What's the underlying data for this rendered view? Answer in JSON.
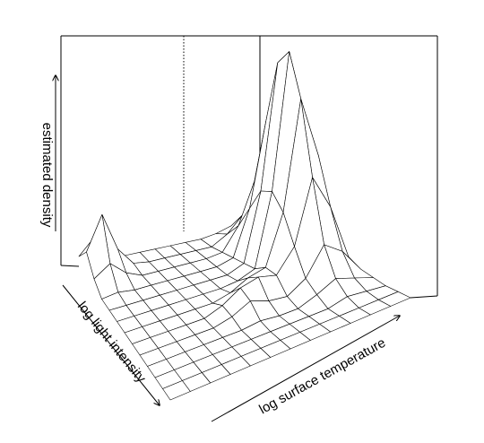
{
  "chart_data": {
    "type": "surface",
    "xlabel": "log surface temperature",
    "ylabel": "log light intensity",
    "zlabel": "estimated density",
    "zlim": [
      0,
      1
    ],
    "color": "#ffffff",
    "z": [
      [
        0.04,
        0.11,
        0.04,
        0,
        0,
        0,
        0,
        0,
        0,
        0.01,
        0.03,
        0.02,
        0
      ],
      [
        0.11,
        0.26,
        0.09,
        0.01,
        0,
        0,
        0,
        0,
        0,
        0.04,
        0.11,
        0.07,
        0.01
      ],
      [
        0.04,
        0.09,
        0.03,
        0,
        0,
        0,
        0,
        0,
        0.01,
        0.11,
        0.29,
        0.19,
        0.03
      ],
      [
        0,
        0.01,
        0,
        0,
        0,
        0,
        0,
        0,
        0.02,
        0.22,
        0.59,
        0.38,
        0.06
      ],
      [
        0,
        0,
        0,
        0,
        0,
        0,
        0,
        0,
        0.03,
        0.33,
        0.88,
        0.57,
        0.09
      ],
      [
        0,
        0,
        0,
        0,
        0,
        0,
        0,
        0.01,
        0.04,
        0.36,
        0.96,
        0.62,
        0.1
      ],
      [
        0,
        0,
        0,
        0,
        0,
        0,
        0.02,
        0.06,
        0.08,
        0.3,
        0.78,
        0.5,
        0.08
      ],
      [
        0,
        0,
        0,
        0,
        0,
        0.03,
        0.08,
        0.1,
        0.08,
        0.18,
        0.46,
        0.3,
        0.05
      ],
      [
        0,
        0,
        0,
        0,
        0,
        0.02,
        0.06,
        0.03,
        0.02,
        0.07,
        0.19,
        0.13,
        0.02
      ],
      [
        0,
        0,
        0,
        0,
        0,
        0,
        0.01,
        0,
        0,
        0.03,
        0.07,
        0.04,
        0.01
      ],
      [
        0,
        0,
        0,
        0,
        0,
        0,
        0,
        0,
        0,
        0,
        0.02,
        0.01,
        0
      ],
      [
        0,
        0,
        0,
        0,
        0,
        0,
        0,
        0,
        0,
        0,
        0,
        0,
        0
      ],
      [
        0,
        0,
        0,
        0,
        0,
        0,
        0,
        0,
        0,
        0,
        0,
        0,
        0
      ]
    ]
  }
}
